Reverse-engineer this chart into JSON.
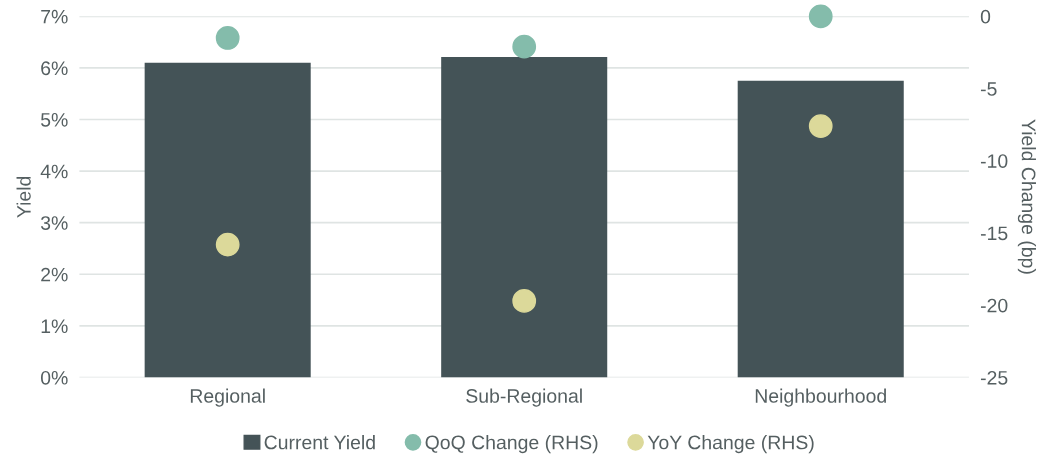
{
  "chart_data": {
    "type": "bar",
    "ylabel": "Yield",
    "y2label": "Yield Change (bp)",
    "categories": [
      "Regional",
      "Sub-Regional",
      "Neighbourhood"
    ],
    "series": [
      {
        "name": "Current Yield",
        "color": "#445357",
        "values": [
          6.1,
          6.21,
          5.75
        ]
      },
      {
        "name": "QoQ Change (RHS)",
        "type": "scatter",
        "axis": "y2",
        "color": "#84bcab",
        "values": [
          -1.5,
          -2.1,
          0
        ]
      },
      {
        "name": "YoY Change (RHS)",
        "type": "scatter",
        "axis": "y2",
        "color": "#dcd99a",
        "values": [
          -15.8,
          -19.7,
          -7.6
        ]
      }
    ],
    "ylim": [
      0,
      7
    ],
    "yticks": [
      {
        "value": 0,
        "label": "0%"
      },
      {
        "value": 1,
        "label": "1%"
      },
      {
        "value": 2,
        "label": "2%"
      },
      {
        "value": 3,
        "label": "3%"
      },
      {
        "value": 4,
        "label": "4%"
      },
      {
        "value": 5,
        "label": "5%"
      },
      {
        "value": 6,
        "label": "6%"
      },
      {
        "value": 7,
        "label": "7%"
      }
    ],
    "y2lim": [
      -25,
      0
    ],
    "y2ticks": [
      -25,
      -20,
      -15,
      -10,
      -5,
      0
    ],
    "grid": "y",
    "legend": "bottom",
    "marker": "circle"
  }
}
